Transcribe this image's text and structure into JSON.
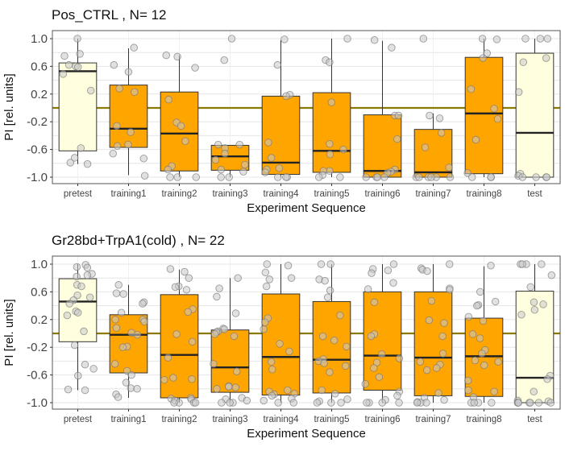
{
  "colors": {
    "training": "#FFA500",
    "prepost": "#FFFFE0",
    "zero_line": "#8B7A00",
    "grid": "#E6E6E6",
    "point": "#C8C8C8"
  },
  "chart_data": [
    {
      "type": "box",
      "title": "Pos_CTRL , N= 12",
      "xlabel": "Experiment Sequence",
      "ylabel": "PI [rel. units]",
      "ylim": [
        -1.08,
        1.08
      ],
      "yticks": [
        "1.0",
        "0.6",
        "0.2",
        "-0.2",
        "-0.6",
        "-1.0"
      ],
      "yticks_values": [
        1.0,
        0.6,
        0.2,
        -0.2,
        -0.6,
        -1.0
      ],
      "reference_line": 0,
      "grid": true,
      "categories": [
        "pretest",
        "training1",
        "training2",
        "training3",
        "training4",
        "training5",
        "training6",
        "training7",
        "training8",
        "test"
      ],
      "boxes": [
        {
          "lower": -0.81,
          "q1": -0.62,
          "median": 0.53,
          "q3": 0.65,
          "upper": 1.0
        },
        {
          "lower": -0.97,
          "q1": -0.57,
          "median": -0.3,
          "q3": 0.33,
          "upper": 0.86
        },
        {
          "lower": -1.0,
          "q1": -0.91,
          "median": -0.37,
          "q3": 0.23,
          "upper": 0.76
        },
        {
          "lower": -1.0,
          "q1": -0.9,
          "median": -0.7,
          "q3": -0.54,
          "upper": -0.54
        },
        {
          "lower": -1.0,
          "q1": -0.96,
          "median": -0.79,
          "q3": 0.17,
          "upper": 0.98
        },
        {
          "lower": -1.0,
          "q1": -0.93,
          "median": -0.62,
          "q3": 0.22,
          "upper": 1.0
        },
        {
          "lower": -1.0,
          "q1": -1.0,
          "median": -0.91,
          "q3": -0.1,
          "upper": 0.97
        },
        {
          "lower": -1.0,
          "q1": -1.0,
          "median": -0.93,
          "q3": -0.31,
          "upper": -0.08
        },
        {
          "lower": -1.0,
          "q1": -0.95,
          "median": -0.08,
          "q3": 0.73,
          "upper": 1.0
        },
        {
          "lower": -1.0,
          "q1": -1.0,
          "median": -0.36,
          "q3": 0.79,
          "upper": 1.0
        }
      ],
      "points": [
        [
          1.0,
          0.78,
          0.75,
          0.62,
          0.6,
          0.59,
          0.49,
          0.25,
          -0.58,
          -0.72,
          -0.79,
          -0.81
        ],
        [
          0.87,
          0.62,
          0.52,
          0.28,
          0.23,
          -0.26,
          -0.35,
          -0.53,
          -0.55,
          -0.66,
          -0.73,
          -0.98
        ],
        [
          0.76,
          0.74,
          0.58,
          0.12,
          -0.21,
          -0.26,
          -0.48,
          -0.84,
          -0.89,
          -1,
          -1,
          -1
        ],
        [
          1.0,
          0.69,
          -0.53,
          -0.53,
          -0.58,
          -0.66,
          -0.75,
          -0.82,
          -0.89,
          -0.92,
          -1,
          -1
        ],
        [
          0.99,
          0.62,
          0.19,
          0.17,
          -0.5,
          -0.72,
          -0.87,
          -0.89,
          -0.93,
          -1,
          -1,
          -1
        ],
        [
          1.0,
          0.69,
          0.66,
          0.08,
          -0.52,
          -0.6,
          -0.67,
          -0.91,
          -0.91,
          -0.97,
          -1,
          -1
        ],
        [
          0.98,
          0.87,
          -0.11,
          -0.11,
          -0.45,
          -0.89,
          -0.92,
          -0.94,
          -1,
          -1,
          -1,
          -1
        ],
        [
          1.0,
          -0.11,
          -0.15,
          -0.36,
          -0.57,
          -0.86,
          -1,
          -1,
          -1,
          -1,
          -1,
          -1
        ],
        [
          1.0,
          0.99,
          0.79,
          0.72,
          0.27,
          -0.01,
          -0.16,
          -0.46,
          -0.94,
          -1,
          -1,
          -1
        ],
        [
          1.0,
          1.0,
          1.0,
          0.72,
          0.66,
          0.23,
          -0.95,
          -0.98,
          -1,
          -1,
          -1,
          -1
        ]
      ]
    },
    {
      "type": "box",
      "title": "Gr28bd+TrpA1(cold) , N= 22",
      "xlabel": "Experiment Sequence",
      "ylabel": "PI [rel. units]",
      "ylim": [
        -1.08,
        1.08
      ],
      "yticks": [
        "1.0",
        "0.6",
        "0.2",
        "-0.2",
        "-0.6",
        "-1.0"
      ],
      "yticks_values": [
        1.0,
        0.6,
        0.2,
        -0.2,
        -0.6,
        -1.0
      ],
      "reference_line": 0,
      "grid": true,
      "categories": [
        "pretest",
        "training1",
        "training2",
        "training3",
        "training4",
        "training5",
        "training6",
        "training7",
        "training8",
        "test"
      ],
      "boxes": [
        {
          "lower": -0.82,
          "q1": -0.12,
          "median": 0.46,
          "q3": 0.79,
          "upper": 1.0
        },
        {
          "lower": -0.93,
          "q1": -0.57,
          "median": -0.02,
          "q3": 0.27,
          "upper": 0.7
        },
        {
          "lower": -1.0,
          "q1": -0.93,
          "median": -0.31,
          "q3": 0.56,
          "upper": 0.92
        },
        {
          "lower": -1.0,
          "q1": -0.85,
          "median": -0.49,
          "q3": 0.05,
          "upper": 0.8
        },
        {
          "lower": -1.0,
          "q1": -0.89,
          "median": -0.34,
          "q3": 0.57,
          "upper": 1.0
        },
        {
          "lower": -1.0,
          "q1": -0.86,
          "median": -0.38,
          "q3": 0.46,
          "upper": 1.0
        },
        {
          "lower": -1.0,
          "q1": -0.82,
          "median": -0.32,
          "q3": 0.6,
          "upper": 1.0
        },
        {
          "lower": -1.0,
          "q1": -0.9,
          "median": -0.35,
          "q3": 0.6,
          "upper": 1.0
        },
        {
          "lower": -1.0,
          "q1": -0.91,
          "median": -0.33,
          "q3": 0.22,
          "upper": 0.97
        },
        {
          "lower": -1.0,
          "q1": -1.0,
          "median": -0.64,
          "q3": 0.61,
          "upper": 1.0
        }
      ],
      "points": [
        [
          0.99,
          0.96,
          0.95,
          0.86,
          0.84,
          0.82,
          0.7,
          0.68,
          0.55,
          0.52,
          0.48,
          0.43,
          0.32,
          0.3,
          0.26,
          0.03,
          -0.17,
          -0.45,
          -0.51,
          -0.61,
          -0.81,
          -0.82
        ],
        [
          0.7,
          0.58,
          0.57,
          0.45,
          0.43,
          0.3,
          0.2,
          0.2,
          0.17,
          0.08,
          0.01,
          -0.02,
          -0.19,
          -0.2,
          -0.44,
          -0.54,
          -0.6,
          -0.71,
          -0.79,
          -0.8,
          -0.88,
          -0.92
        ],
        [
          0.93,
          0.89,
          0.8,
          0.68,
          0.67,
          0.63,
          0.35,
          0.31,
          -0.01,
          -0.12,
          -0.35,
          -0.64,
          -0.66,
          -0.67,
          -0.93,
          -0.94,
          -0.95,
          -0.97,
          -1,
          -1,
          -1,
          -1
        ],
        [
          0.8,
          0.65,
          0.53,
          0.29,
          0.07,
          0.06,
          0.03,
          0.02,
          -0.01,
          -0.04,
          -0.44,
          -0.55,
          -0.76,
          -0.77,
          -0.78,
          -0.8,
          -0.93,
          -0.95,
          -0.97,
          -1,
          -1,
          -1
        ],
        [
          1.0,
          0.98,
          0.88,
          0.8,
          0.78,
          0.68,
          0.22,
          0.16,
          0.06,
          -0.15,
          -0.26,
          -0.41,
          -0.52,
          -0.82,
          -0.84,
          -0.87,
          -0.88,
          -0.9,
          -0.94,
          -0.97,
          -1,
          -1
        ],
        [
          1.0,
          1.0,
          0.78,
          0.76,
          0.62,
          0.52,
          0.26,
          -0.04,
          -0.1,
          -0.19,
          -0.37,
          -0.4,
          -0.43,
          -0.47,
          -0.56,
          -0.82,
          -0.87,
          -0.95,
          -0.98,
          -1,
          -1,
          -1
        ],
        [
          1.0,
          0.93,
          0.91,
          0.87,
          0.73,
          0.64,
          0.45,
          -0.01,
          -0.04,
          -0.3,
          -0.36,
          -0.42,
          -0.5,
          -0.63,
          -0.73,
          -0.84,
          -0.9,
          -0.96,
          -1,
          -1,
          -1,
          -1
        ],
        [
          1.0,
          0.94,
          0.92,
          0.9,
          0.65,
          0.63,
          0.47,
          0.19,
          0.15,
          -0.04,
          -0.29,
          -0.41,
          -0.45,
          -0.5,
          -0.53,
          -0.86,
          -0.93,
          -0.96,
          -0.99,
          -1,
          -1,
          -1
        ],
        [
          0.98,
          0.6,
          0.46,
          0.41,
          0.4,
          0.24,
          0.18,
          -0.01,
          -0.07,
          -0.24,
          -0.29,
          -0.39,
          -0.41,
          -0.46,
          -0.68,
          -0.82,
          -0.84,
          -0.92,
          -1,
          -1,
          -1,
          -1
        ],
        [
          1.0,
          1.0,
          1.0,
          1.0,
          0.84,
          0.67,
          0.45,
          0.42,
          0.34,
          0.27,
          -0.61,
          -0.66,
          -0.84,
          -0.97,
          -0.98,
          -1,
          -1,
          -1,
          -1,
          -1,
          -1,
          -1
        ]
      ]
    }
  ]
}
